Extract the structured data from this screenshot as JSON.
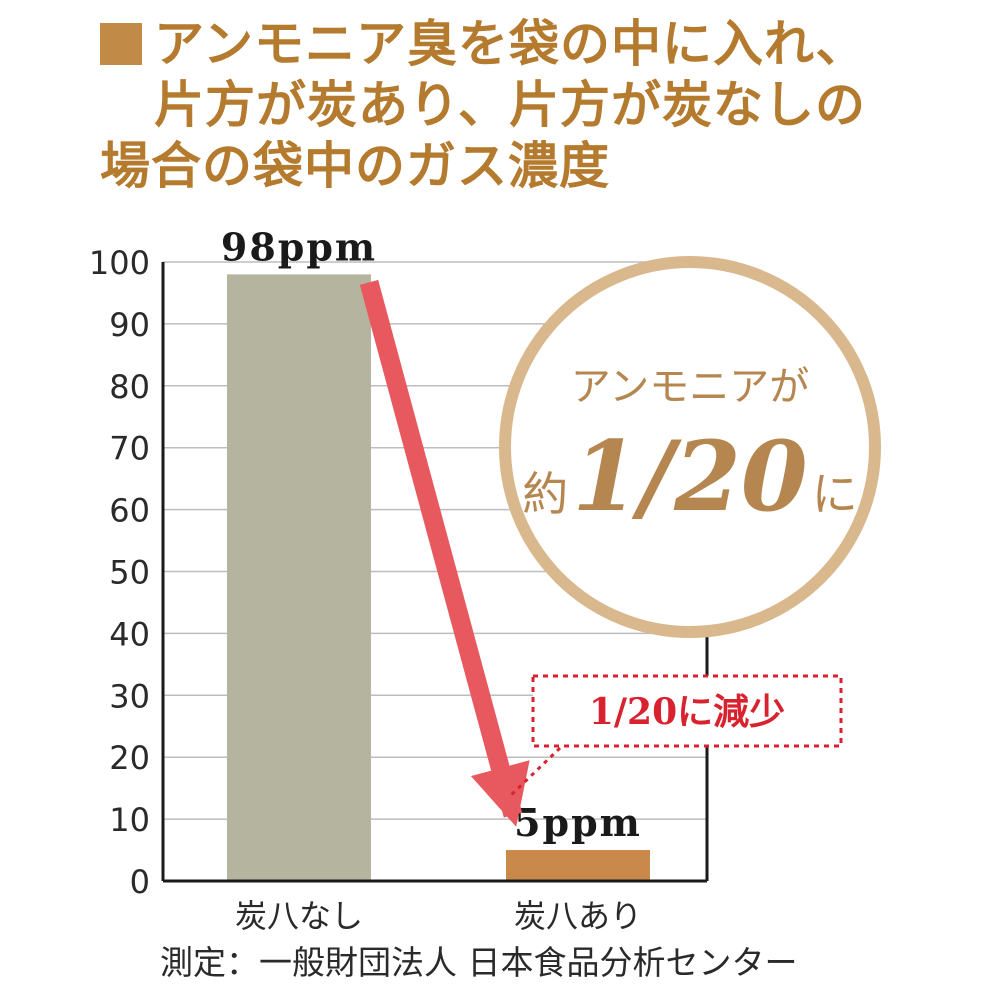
{
  "title": {
    "lines": [
      "アンモニア臭を袋の中に入れ、",
      "片方が炭あり、片方が炭なしの",
      "場合の袋中のガス濃度"
    ]
  },
  "chart_data": {
    "type": "bar",
    "categories": [
      "炭八なし",
      "炭八あり"
    ],
    "values": [
      98,
      5
    ],
    "data_labels": [
      "98ppm",
      "5ppm"
    ],
    "bar_colors": [
      "#b5b49f",
      "#c8894a"
    ],
    "ylim": [
      0,
      100
    ],
    "yticks": [
      0,
      10,
      20,
      30,
      40,
      50,
      60,
      70,
      80,
      90,
      100
    ],
    "grid": true,
    "xlabel": "",
    "ylabel": "",
    "annotations": {
      "arrow_color": "#e8585f",
      "callout_text": "1/20に減少",
      "callout_color": "#d8222f",
      "circle_line1": "アンモニアが",
      "circle_prefix": "約",
      "circle_fraction": "1/20",
      "circle_suffix": "に",
      "circle_color": "#d9b88e",
      "circle_text_color": "#b5864f"
    }
  },
  "footnote": "測定：一般財団法人 日本食品分析センター"
}
